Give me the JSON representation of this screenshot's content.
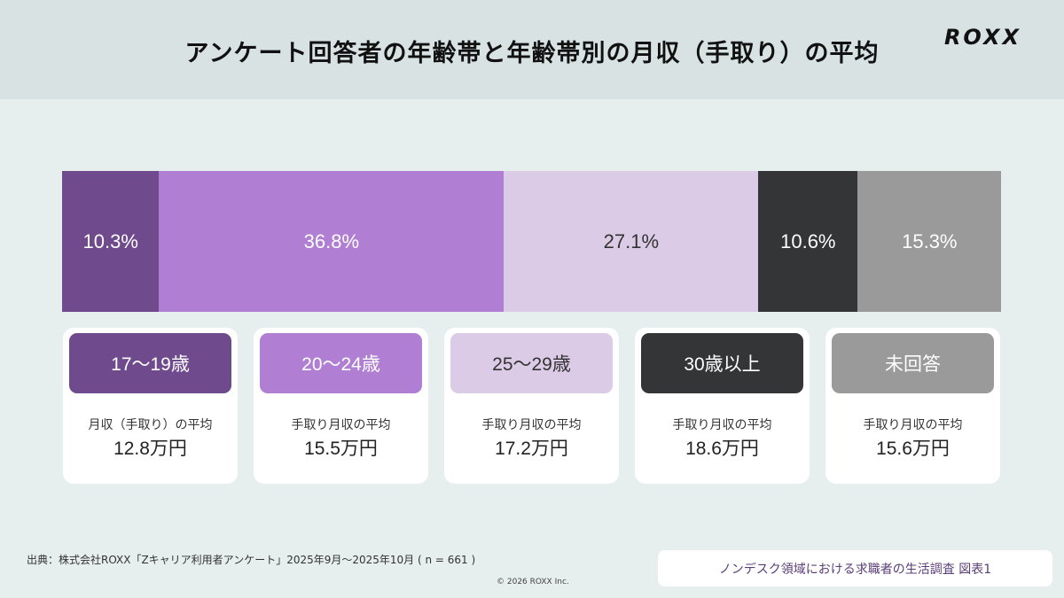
{
  "header": {
    "title": "アンケート回答者の年齢帯と年齢帯別の月収（手取り）の平均",
    "logo": "ROXX"
  },
  "chart_data": {
    "type": "bar",
    "orientation": "horizontal-stacked-100",
    "categories": [
      "17〜19歳",
      "20〜24歳",
      "25〜29歳",
      "30歳以上",
      "未回答"
    ],
    "values": [
      10.3,
      36.8,
      27.1,
      10.6,
      15.3
    ],
    "value_labels": [
      "10.3%",
      "36.8%",
      "27.1%",
      "10.6%",
      "15.3%"
    ],
    "colors": [
      "#6f4a8c",
      "#b07fd4",
      "#dccbe6",
      "#343537",
      "#9a9a9a"
    ],
    "text_colors": [
      "#ffffff",
      "#ffffff",
      "#333333",
      "#ffffff",
      "#ffffff"
    ]
  },
  "cards": [
    {
      "age": "17〜19歳",
      "label": "月収（手取り）の平均",
      "value": "12.8万円"
    },
    {
      "age": "20〜24歳",
      "label": "手取り月収の平均",
      "value": "15.5万円"
    },
    {
      "age": "25〜29歳",
      "label": "手取り月収の平均",
      "value": "17.2万円"
    },
    {
      "age": "30歳以上",
      "label": "手取り月収の平均",
      "value": "18.6万円"
    },
    {
      "age": "未回答",
      "label": "手取り月収の平均",
      "value": "15.6万円"
    }
  ],
  "footer": {
    "source": "出典：株式会社ROXX「Zキャリア利用者アンケート」2025年9月〜2025年10月 ( n = 661 )",
    "copyright": "© 2026 ROXX Inc.",
    "figure_label": "ノンデスク領域における求職者の生活調査 図表1"
  }
}
